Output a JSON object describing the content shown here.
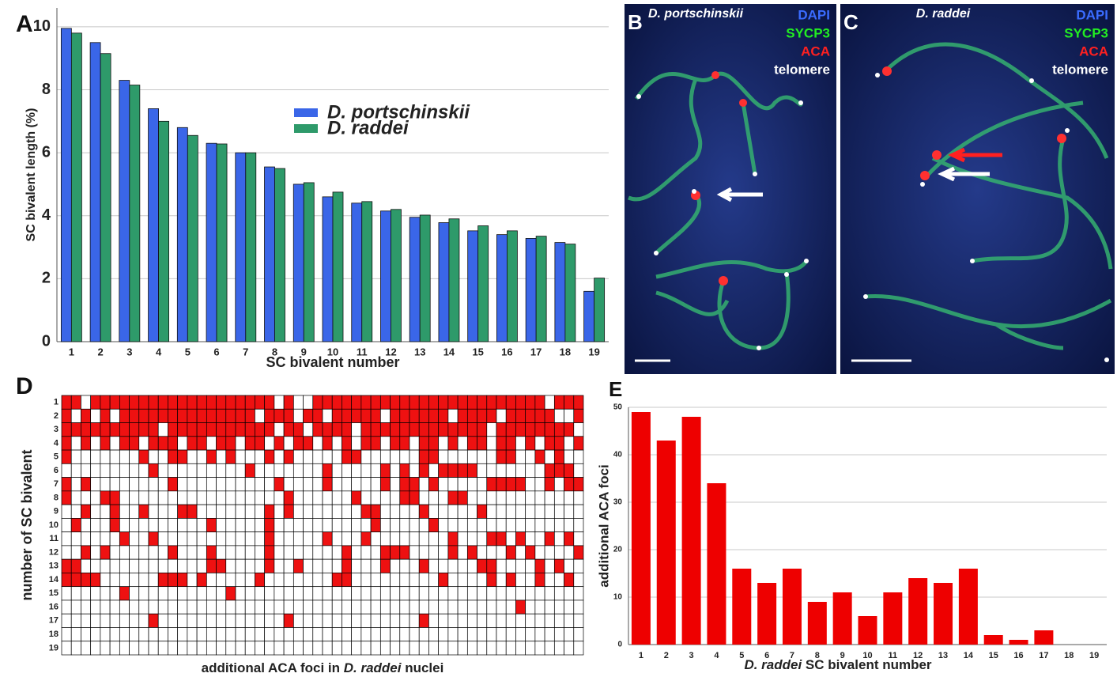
{
  "chart_data": [
    {
      "type": "bar",
      "panel": "A",
      "ylabel": "SC bivalent length (%)",
      "xlabel": "SC bivalent number",
      "categories": [
        "1",
        "2",
        "3",
        "4",
        "5",
        "6",
        "7",
        "8",
        "9",
        "10",
        "11",
        "12",
        "13",
        "14",
        "15",
        "16",
        "17",
        "18",
        "19"
      ],
      "series": [
        {
          "name": "D. portschinskii",
          "color": "#3a66e8",
          "values": [
            9.95,
            9.5,
            8.3,
            7.4,
            6.8,
            6.3,
            6.0,
            5.55,
            5.0,
            4.6,
            4.4,
            4.15,
            3.95,
            3.78,
            3.52,
            3.4,
            3.28,
            3.15,
            1.6
          ]
        },
        {
          "name": "D. raddei",
          "color": "#2e9a6a",
          "values": [
            9.8,
            9.15,
            8.15,
            7.0,
            6.55,
            6.28,
            6.0,
            5.5,
            5.05,
            4.75,
            4.45,
            4.2,
            4.02,
            3.9,
            3.68,
            3.52,
            3.35,
            3.1,
            2.02
          ]
        }
      ],
      "ylim": [
        0,
        10.6
      ],
      "yticks": [
        0,
        2,
        4,
        6,
        8,
        10
      ],
      "grid": true
    },
    {
      "type": "heatmap",
      "panel": "D",
      "ylabel": "number of SC bivalent",
      "xlabel": [
        "additional ACA foci in ",
        "D. raddei",
        " nuclei"
      ],
      "color": "#ee1111",
      "rows": [
        "1",
        "2",
        "3",
        "4",
        "5",
        "6",
        "7",
        "8",
        "9",
        "10",
        "11",
        "12",
        "13",
        "14",
        "15",
        "16",
        "17",
        "18",
        "19"
      ],
      "matrix": [
        [
          1,
          1,
          0,
          1,
          1,
          1,
          1,
          1,
          1,
          1,
          1,
          1,
          1,
          1,
          1,
          1,
          1,
          1,
          1,
          1,
          1,
          1,
          0,
          1,
          0,
          0,
          1,
          1,
          1,
          1,
          1,
          1,
          1,
          1,
          1,
          1,
          1,
          1,
          1,
          1,
          1,
          1,
          1,
          1,
          1,
          1,
          1,
          1,
          1,
          1,
          0,
          1,
          1,
          1
        ],
        [
          1,
          0,
          1,
          0,
          1,
          0,
          1,
          1,
          1,
          1,
          1,
          1,
          1,
          1,
          1,
          1,
          1,
          1,
          1,
          1,
          0,
          1,
          1,
          1,
          0,
          1,
          1,
          0,
          1,
          1,
          1,
          1,
          1,
          0,
          1,
          1,
          1,
          1,
          1,
          1,
          0,
          1,
          1,
          1,
          1,
          0,
          1,
          1,
          1,
          1,
          1,
          0,
          0,
          1
        ],
        [
          1,
          1,
          1,
          1,
          1,
          1,
          1,
          1,
          1,
          1,
          0,
          1,
          1,
          1,
          1,
          1,
          1,
          1,
          1,
          1,
          1,
          1,
          0,
          1,
          1,
          0,
          1,
          1,
          1,
          1,
          0,
          1,
          1,
          1,
          1,
          1,
          1,
          1,
          1,
          1,
          1,
          1,
          1,
          1,
          0,
          1,
          1,
          1,
          1,
          1,
          1,
          1,
          1,
          0
        ],
        [
          1,
          0,
          1,
          0,
          1,
          0,
          1,
          1,
          0,
          1,
          1,
          1,
          0,
          1,
          1,
          0,
          1,
          1,
          0,
          1,
          1,
          0,
          1,
          0,
          1,
          1,
          0,
          1,
          0,
          1,
          0,
          1,
          1,
          0,
          1,
          1,
          0,
          1,
          1,
          0,
          1,
          0,
          1,
          1,
          0,
          1,
          1,
          0,
          1,
          0,
          1,
          1,
          0,
          1
        ],
        [
          1,
          0,
          0,
          0,
          0,
          0,
          0,
          0,
          1,
          0,
          0,
          1,
          1,
          0,
          0,
          1,
          0,
          1,
          0,
          0,
          0,
          1,
          0,
          1,
          0,
          0,
          0,
          0,
          0,
          1,
          1,
          0,
          0,
          0,
          0,
          0,
          0,
          1,
          1,
          0,
          0,
          0,
          0,
          0,
          0,
          1,
          1,
          0,
          0,
          1,
          0,
          1,
          0,
          0
        ],
        [
          0,
          0,
          0,
          0,
          0,
          0,
          0,
          0,
          0,
          1,
          0,
          0,
          0,
          0,
          0,
          0,
          0,
          0,
          0,
          1,
          0,
          0,
          0,
          0,
          0,
          0,
          0,
          1,
          0,
          0,
          0,
          0,
          0,
          1,
          0,
          1,
          0,
          1,
          0,
          1,
          1,
          1,
          1,
          0,
          0,
          0,
          0,
          0,
          0,
          0,
          1,
          1,
          1,
          0
        ],
        [
          1,
          0,
          1,
          0,
          0,
          0,
          0,
          0,
          0,
          0,
          0,
          1,
          0,
          0,
          0,
          0,
          0,
          0,
          0,
          0,
          0,
          0,
          1,
          0,
          0,
          0,
          0,
          1,
          0,
          0,
          0,
          0,
          0,
          1,
          0,
          1,
          1,
          0,
          1,
          0,
          0,
          0,
          0,
          0,
          1,
          1,
          1,
          1,
          0,
          0,
          1,
          0,
          1,
          1
        ],
        [
          1,
          0,
          0,
          0,
          1,
          1,
          0,
          0,
          0,
          0,
          0,
          0,
          0,
          0,
          0,
          0,
          0,
          0,
          0,
          0,
          0,
          0,
          0,
          1,
          0,
          0,
          0,
          0,
          0,
          0,
          1,
          0,
          0,
          0,
          0,
          1,
          1,
          0,
          0,
          0,
          1,
          1,
          0,
          0,
          0,
          0,
          0,
          0,
          0,
          0,
          0,
          0,
          0,
          0
        ],
        [
          0,
          0,
          1,
          0,
          0,
          1,
          0,
          0,
          1,
          0,
          0,
          0,
          1,
          1,
          0,
          0,
          0,
          0,
          0,
          0,
          0,
          1,
          0,
          1,
          0,
          0,
          0,
          0,
          0,
          0,
          0,
          1,
          1,
          0,
          0,
          0,
          0,
          1,
          0,
          0,
          0,
          0,
          0,
          1,
          0,
          0,
          0,
          0,
          0,
          0,
          0,
          0,
          0,
          0
        ],
        [
          0,
          1,
          0,
          0,
          0,
          1,
          0,
          0,
          0,
          0,
          0,
          0,
          0,
          0,
          0,
          1,
          0,
          0,
          0,
          0,
          0,
          1,
          0,
          0,
          0,
          0,
          0,
          0,
          0,
          0,
          0,
          0,
          1,
          0,
          0,
          0,
          0,
          0,
          1,
          0,
          0,
          0,
          0,
          0,
          0,
          0,
          0,
          0,
          0,
          0,
          0,
          0,
          0,
          0
        ],
        [
          0,
          0,
          0,
          0,
          0,
          0,
          1,
          0,
          0,
          1,
          0,
          0,
          0,
          0,
          0,
          0,
          0,
          0,
          0,
          0,
          0,
          1,
          0,
          0,
          0,
          0,
          0,
          1,
          0,
          0,
          0,
          1,
          0,
          0,
          0,
          0,
          0,
          0,
          0,
          0,
          1,
          0,
          0,
          0,
          1,
          1,
          0,
          1,
          0,
          0,
          1,
          0,
          1,
          0
        ],
        [
          0,
          0,
          1,
          0,
          1,
          0,
          0,
          0,
          0,
          0,
          0,
          1,
          0,
          0,
          0,
          1,
          0,
          0,
          0,
          0,
          0,
          1,
          0,
          0,
          0,
          0,
          0,
          0,
          0,
          1,
          0,
          0,
          0,
          1,
          1,
          1,
          0,
          0,
          0,
          0,
          1,
          0,
          1,
          0,
          0,
          0,
          1,
          0,
          1,
          0,
          0,
          0,
          0,
          1
        ],
        [
          1,
          1,
          0,
          0,
          0,
          0,
          0,
          0,
          0,
          0,
          0,
          0,
          0,
          0,
          0,
          1,
          1,
          0,
          0,
          0,
          0,
          1,
          0,
          0,
          1,
          0,
          0,
          0,
          0,
          1,
          0,
          0,
          0,
          1,
          0,
          0,
          0,
          1,
          0,
          0,
          0,
          0,
          0,
          1,
          1,
          0,
          0,
          0,
          0,
          1,
          0,
          1,
          0,
          0
        ],
        [
          1,
          1,
          1,
          1,
          0,
          0,
          0,
          0,
          0,
          0,
          1,
          1,
          1,
          0,
          1,
          0,
          0,
          0,
          0,
          0,
          1,
          0,
          0,
          0,
          0,
          0,
          0,
          0,
          1,
          1,
          0,
          0,
          0,
          0,
          0,
          0,
          0,
          0,
          0,
          1,
          0,
          0,
          0,
          0,
          1,
          0,
          1,
          0,
          0,
          1,
          0,
          0,
          1,
          0
        ],
        [
          0,
          0,
          0,
          0,
          0,
          0,
          1,
          0,
          0,
          0,
          0,
          0,
          0,
          0,
          0,
          0,
          0,
          1,
          0,
          0,
          0,
          0,
          0,
          0,
          0,
          0,
          0,
          0,
          0,
          0,
          0,
          0,
          0,
          0,
          0,
          0,
          0,
          0,
          0,
          0,
          0,
          0,
          0,
          0,
          0,
          0,
          0,
          0,
          0,
          0,
          0,
          0,
          0,
          0
        ],
        [
          0,
          0,
          0,
          0,
          0,
          0,
          0,
          0,
          0,
          0,
          0,
          0,
          0,
          0,
          0,
          0,
          0,
          0,
          0,
          0,
          0,
          0,
          0,
          0,
          0,
          0,
          0,
          0,
          0,
          0,
          0,
          0,
          0,
          0,
          0,
          0,
          0,
          0,
          0,
          0,
          0,
          0,
          0,
          0,
          0,
          0,
          0,
          1,
          0,
          0,
          0,
          0,
          0,
          0
        ],
        [
          0,
          0,
          0,
          0,
          0,
          0,
          0,
          0,
          0,
          1,
          0,
          0,
          0,
          0,
          0,
          0,
          0,
          0,
          0,
          0,
          0,
          0,
          0,
          1,
          0,
          0,
          0,
          0,
          0,
          0,
          0,
          0,
          0,
          0,
          0,
          0,
          0,
          1,
          0,
          0,
          0,
          0,
          0,
          0,
          0,
          0,
          0,
          0,
          0,
          0,
          0,
          0,
          0,
          0
        ],
        [
          0,
          0,
          0,
          0,
          0,
          0,
          0,
          0,
          0,
          0,
          0,
          0,
          0,
          0,
          0,
          0,
          0,
          0,
          0,
          0,
          0,
          0,
          0,
          0,
          0,
          0,
          0,
          0,
          0,
          0,
          0,
          0,
          0,
          0,
          0,
          0,
          0,
          0,
          0,
          0,
          0,
          0,
          0,
          0,
          0,
          0,
          0,
          0,
          0,
          0,
          0,
          0,
          0,
          0
        ],
        [
          0,
          0,
          0,
          0,
          0,
          0,
          0,
          0,
          0,
          0,
          0,
          0,
          0,
          0,
          0,
          0,
          0,
          0,
          0,
          0,
          0,
          0,
          0,
          0,
          0,
          0,
          0,
          0,
          0,
          0,
          0,
          0,
          0,
          0,
          0,
          0,
          0,
          0,
          0,
          0,
          0,
          0,
          0,
          0,
          0,
          0,
          0,
          0,
          0,
          0,
          0,
          0,
          0,
          0
        ]
      ]
    },
    {
      "type": "bar",
      "panel": "E",
      "ylabel": "additional ACA foci",
      "xlabel": [
        "D. raddei",
        " SC bivalent number"
      ],
      "color": "#ee0000",
      "categories": [
        "1",
        "2",
        "3",
        "4",
        "5",
        "6",
        "7",
        "8",
        "9",
        "10",
        "11",
        "12",
        "13",
        "14",
        "15",
        "16",
        "17",
        "18",
        "19"
      ],
      "values": [
        49,
        43,
        48,
        34,
        16,
        13,
        16,
        9,
        11,
        6,
        11,
        14,
        13,
        16,
        2,
        1,
        3,
        0,
        0
      ],
      "ylim": [
        0,
        50
      ],
      "yticks": [
        0,
        10,
        20,
        30,
        40,
        50
      ],
      "grid": true
    }
  ],
  "images": [
    {
      "panel": "B",
      "species": "D. portschinskii",
      "channels": [
        {
          "name": "DAPI",
          "color": "#3a6cff"
        },
        {
          "name": "SYCP3",
          "color": "#22ee22"
        },
        {
          "name": "ACA",
          "color": "#ff2020"
        },
        {
          "name": "telomere",
          "color": "#ffffff"
        }
      ]
    },
    {
      "panel": "C",
      "species": "D. raddei",
      "channels": [
        {
          "name": "DAPI",
          "color": "#3a6cff"
        },
        {
          "name": "SYCP3",
          "color": "#22ee22"
        },
        {
          "name": "ACA",
          "color": "#ff2020"
        },
        {
          "name": "telomere",
          "color": "#ffffff"
        }
      ]
    }
  ]
}
